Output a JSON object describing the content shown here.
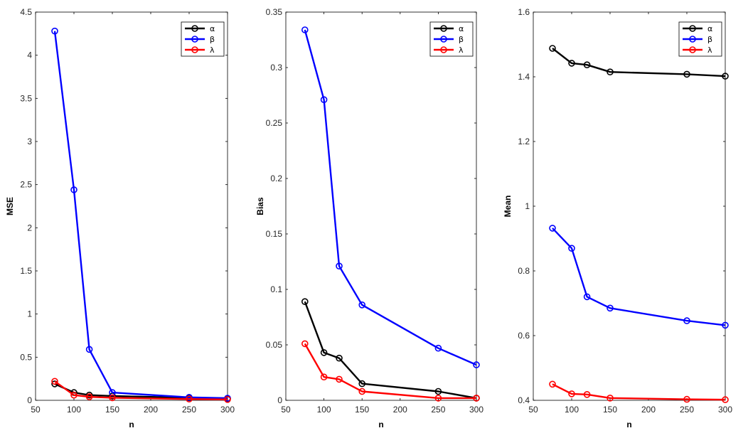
{
  "chart_data": [
    {
      "type": "line",
      "title": "",
      "xlabel": "n",
      "ylabel": "MSE",
      "xlim": [
        50,
        300
      ],
      "ylim": [
        0,
        4.5
      ],
      "xticks": [
        50,
        100,
        150,
        200,
        250,
        300
      ],
      "yticks": [
        0,
        0.5,
        1,
        1.5,
        2,
        2.5,
        3,
        3.5,
        4,
        4.5
      ],
      "x": [
        75,
        100,
        120,
        150,
        250,
        300
      ],
      "legend_position": "top-right",
      "series": [
        {
          "name": "α",
          "color": "#000000",
          "values": [
            0.19,
            0.09,
            0.06,
            0.05,
            0.03,
            0.02
          ]
        },
        {
          "name": "β",
          "color": "#0000ff",
          "values": [
            4.28,
            2.44,
            0.59,
            0.09,
            0.035,
            0.025
          ]
        },
        {
          "name": "λ",
          "color": "#ff0000",
          "values": [
            0.22,
            0.06,
            0.04,
            0.03,
            0.015,
            0.01
          ]
        }
      ]
    },
    {
      "type": "line",
      "title": "",
      "xlabel": "n",
      "ylabel": "Bias",
      "xlim": [
        50,
        300
      ],
      "ylim": [
        0,
        0.35
      ],
      "xticks": [
        50,
        100,
        150,
        200,
        250,
        300
      ],
      "yticks": [
        0,
        0.05,
        0.1,
        0.15,
        0.2,
        0.25,
        0.3,
        0.35
      ],
      "x": [
        75,
        100,
        120,
        150,
        250,
        300
      ],
      "legend_position": "top-right",
      "series": [
        {
          "name": "α",
          "color": "#000000",
          "values": [
            0.089,
            0.043,
            0.038,
            0.015,
            0.008,
            0.002
          ]
        },
        {
          "name": "β",
          "color": "#0000ff",
          "values": [
            0.334,
            0.271,
            0.121,
            0.086,
            0.047,
            0.032
          ]
        },
        {
          "name": "λ",
          "color": "#ff0000",
          "values": [
            0.051,
            0.021,
            0.019,
            0.008,
            0.002,
            0.002
          ]
        }
      ]
    },
    {
      "type": "line",
      "title": "",
      "xlabel": "n",
      "ylabel": "Mean",
      "xlim": [
        50,
        300
      ],
      "ylim": [
        0.4,
        1.6
      ],
      "xticks": [
        50,
        100,
        150,
        200,
        250,
        300
      ],
      "yticks": [
        0.4,
        0.6,
        0.8,
        1,
        1.2,
        1.4,
        1.6
      ],
      "x": [
        75,
        100,
        120,
        150,
        250,
        300
      ],
      "legend_position": "top-right",
      "series": [
        {
          "name": "α",
          "color": "#000000",
          "values": [
            1.488,
            1.442,
            1.437,
            1.415,
            1.408,
            1.402
          ]
        },
        {
          "name": "β",
          "color": "#0000ff",
          "values": [
            0.932,
            0.87,
            0.72,
            0.685,
            0.646,
            0.632
          ]
        },
        {
          "name": "λ",
          "color": "#ff0000",
          "values": [
            0.45,
            0.42,
            0.418,
            0.407,
            0.403,
            0.402
          ]
        }
      ]
    }
  ]
}
